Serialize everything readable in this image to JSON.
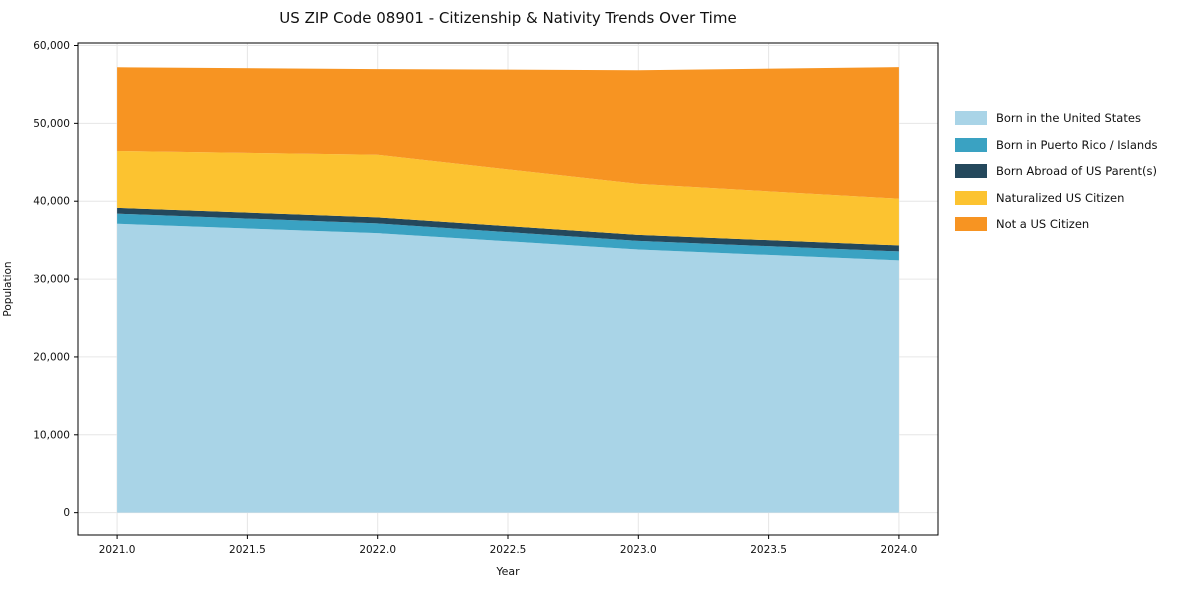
{
  "chart_data": {
    "type": "area",
    "stacked": true,
    "title": "US ZIP Code 08901 - Citizenship & Nativity Trends Over Time",
    "xlabel": "Year",
    "ylabel": "Population",
    "x": [
      2021,
      2022,
      2023,
      2024
    ],
    "series": [
      {
        "name": "Born in the United States",
        "color": "#a9d4e7",
        "values": [
          37100,
          35900,
          33800,
          32400
        ]
      },
      {
        "name": "Born in Puerto Rico / Islands",
        "color": "#3aa2c2",
        "values": [
          1300,
          1250,
          1100,
          1150
        ]
      },
      {
        "name": "Born Abroad of US Parent(s)",
        "color": "#24485c",
        "values": [
          750,
          770,
          770,
          770
        ]
      },
      {
        "name": "Naturalized US Citizen",
        "color": "#fcc330",
        "values": [
          7300,
          8050,
          6550,
          6000
        ]
      },
      {
        "name": "Not a US Citizen",
        "color": "#f79422",
        "values": [
          10750,
          11000,
          14600,
          16900
        ]
      }
    ],
    "totals": [
      57200,
      56970,
      56820,
      57220
    ],
    "xlim": [
      2020.85,
      2024.15
    ],
    "ylim": [
      -2870,
      60320
    ],
    "x_ticks": [
      {
        "value": 2021.0,
        "label": "2021.0"
      },
      {
        "value": 2021.5,
        "label": "2021.5"
      },
      {
        "value": 2022.0,
        "label": "2022.0"
      },
      {
        "value": 2022.5,
        "label": "2022.5"
      },
      {
        "value": 2023.0,
        "label": "2023.0"
      },
      {
        "value": 2023.5,
        "label": "2023.5"
      },
      {
        "value": 2024.0,
        "label": "2024.0"
      }
    ],
    "y_ticks": [
      {
        "value": 0,
        "label": "0"
      },
      {
        "value": 10000,
        "label": "10,000"
      },
      {
        "value": 20000,
        "label": "20,000"
      },
      {
        "value": 30000,
        "label": "30,000"
      },
      {
        "value": 40000,
        "label": "40,000"
      },
      {
        "value": 50000,
        "label": "50,000"
      },
      {
        "value": 60000,
        "label": "60,000"
      }
    ],
    "grid": true,
    "grid_color": "#e6e6e6",
    "spine_color": "#000000",
    "legend_position": "right"
  }
}
